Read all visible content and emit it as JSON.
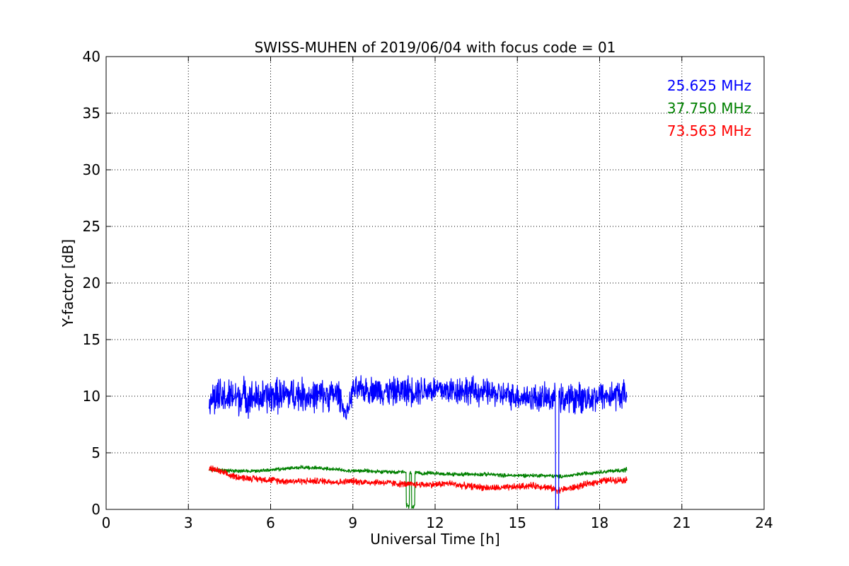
{
  "chart_data": {
    "type": "line",
    "title": "SWISS-MUHEN of 2019/06/04 with focus code = 01",
    "xlabel": "Universal Time [h]",
    "ylabel": "Y-factor [dB]",
    "xlim": [
      0,
      24
    ],
    "ylim": [
      0,
      40
    ],
    "xticks": [
      0,
      3,
      6,
      9,
      12,
      15,
      18,
      21,
      24
    ],
    "yticks": [
      0,
      5,
      10,
      15,
      20,
      25,
      30,
      35,
      40
    ],
    "grid": true,
    "legend_position": "top-right",
    "series": [
      {
        "name": "25.625 MHz",
        "color": "#0000ff",
        "x": [
          3.75,
          4.0,
          4.5,
          5.0,
          5.5,
          6.0,
          6.5,
          7.0,
          7.5,
          8.0,
          8.5,
          8.75,
          9.0,
          9.5,
          10.0,
          10.5,
          11.0,
          11.5,
          12.0,
          12.5,
          13.0,
          13.5,
          14.0,
          14.5,
          15.0,
          15.5,
          16.0,
          16.4,
          16.45,
          16.5,
          17.0,
          17.5,
          18.0,
          18.5,
          19.0
        ],
        "mid": [
          9.9,
          9.8,
          9.9,
          10.0,
          9.8,
          10.0,
          10.1,
          10.2,
          10.0,
          10.1,
          10.2,
          8.2,
          10.5,
          10.6,
          10.5,
          10.4,
          10.5,
          10.6,
          10.6,
          10.5,
          10.6,
          10.4,
          10.3,
          10.1,
          10.0,
          9.9,
          9.8,
          9.9,
          0.0,
          9.8,
          9.8,
          9.9,
          10.0,
          10.1,
          10.2
        ],
        "spread": [
          1.8,
          2.1,
          1.9,
          2.0,
          1.8,
          1.9,
          1.8,
          1.8,
          1.7,
          1.7,
          1.6,
          0.6,
          1.4,
          1.4,
          1.5,
          1.5,
          1.6,
          1.6,
          1.5,
          1.5,
          1.6,
          1.5,
          1.4,
          1.4,
          1.4,
          1.5,
          1.5,
          1.4,
          0.0,
          1.5,
          1.6,
          1.6,
          1.6,
          1.6,
          1.6
        ]
      },
      {
        "name": "37.750 MHz",
        "color": "#008000",
        "x": [
          3.75,
          4.0,
          4.5,
          5.0,
          5.5,
          6.0,
          6.5,
          7.0,
          7.5,
          8.0,
          8.5,
          9.0,
          9.5,
          10.0,
          10.5,
          10.9,
          11.0,
          11.1,
          11.2,
          11.3,
          11.5,
          12.0,
          12.5,
          13.0,
          13.5,
          14.0,
          14.5,
          15.0,
          15.5,
          16.0,
          16.5,
          17.0,
          17.5,
          18.0,
          18.5,
          19.0
        ],
        "mid": [
          3.5,
          3.5,
          3.4,
          3.4,
          3.4,
          3.5,
          3.6,
          3.7,
          3.7,
          3.6,
          3.5,
          3.4,
          3.4,
          3.3,
          3.3,
          3.3,
          0.3,
          3.2,
          0.3,
          3.2,
          3.2,
          3.2,
          3.1,
          3.1,
          3.1,
          3.1,
          3.0,
          3.0,
          3.0,
          3.0,
          2.9,
          3.0,
          3.2,
          3.3,
          3.4,
          3.5
        ],
        "spread": [
          0.2,
          0.2,
          0.2,
          0.2,
          0.2,
          0.2,
          0.2,
          0.2,
          0.2,
          0.2,
          0.2,
          0.2,
          0.2,
          0.2,
          0.2,
          0.2,
          0.3,
          0.2,
          0.3,
          0.2,
          0.2,
          0.2,
          0.2,
          0.2,
          0.2,
          0.2,
          0.2,
          0.2,
          0.2,
          0.2,
          0.2,
          0.2,
          0.2,
          0.2,
          0.2,
          0.3
        ]
      },
      {
        "name": "73.563 MHz",
        "color": "#ff0000",
        "x": [
          3.75,
          4.0,
          4.5,
          5.0,
          5.5,
          6.0,
          6.5,
          7.0,
          7.5,
          8.0,
          8.5,
          9.0,
          9.5,
          10.0,
          10.5,
          11.0,
          11.5,
          12.0,
          12.5,
          13.0,
          13.5,
          14.0,
          14.5,
          15.0,
          15.5,
          16.0,
          16.5,
          17.0,
          17.5,
          18.0,
          18.5,
          19.0
        ],
        "mid": [
          3.6,
          3.5,
          3.0,
          2.8,
          2.7,
          2.6,
          2.5,
          2.5,
          2.5,
          2.5,
          2.4,
          2.5,
          2.4,
          2.4,
          2.3,
          2.2,
          2.2,
          2.2,
          2.3,
          2.1,
          2.0,
          1.9,
          1.9,
          2.0,
          2.1,
          2.0,
          1.7,
          1.9,
          2.2,
          2.5,
          2.6,
          2.6
        ]
      }
    ],
    "annotations": [
      "25.625 MHz",
      "37.750 MHz",
      "73.563 MHz"
    ]
  }
}
